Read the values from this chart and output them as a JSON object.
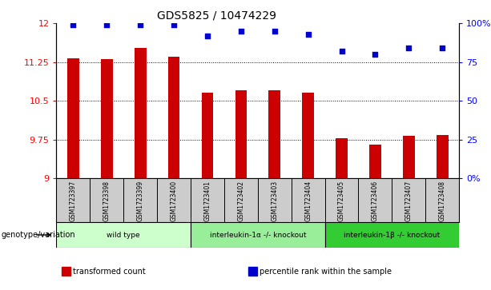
{
  "title": "GDS5825 / 10474229",
  "samples": [
    "GSM1723397",
    "GSM1723398",
    "GSM1723399",
    "GSM1723400",
    "GSM1723401",
    "GSM1723402",
    "GSM1723403",
    "GSM1723404",
    "GSM1723405",
    "GSM1723406",
    "GSM1723407",
    "GSM1723408"
  ],
  "bar_values": [
    11.32,
    11.31,
    11.52,
    11.35,
    10.65,
    10.7,
    10.7,
    10.65,
    9.77,
    9.66,
    9.83,
    9.84
  ],
  "percentile_values": [
    99,
    99,
    99,
    99,
    92,
    95,
    95,
    93,
    82,
    80,
    84,
    84
  ],
  "bar_color": "#cc0000",
  "dot_color": "#0000cc",
  "ymin": 9.0,
  "ymax": 12.0,
  "yticks_left": [
    9,
    9.75,
    10.5,
    11.25,
    12
  ],
  "ytick_labels_left": [
    "9",
    "9.75",
    "10.5",
    "11.25",
    "12"
  ],
  "yticks_right_vals": [
    0,
    25,
    50,
    75,
    100
  ],
  "ytick_labels_right": [
    "0%",
    "25",
    "50",
    "75",
    "100%"
  ],
  "grid_lines": [
    9.75,
    10.5,
    11.25
  ],
  "groups": [
    {
      "label": "wild type",
      "start": 0,
      "end": 3,
      "color": "#ccffcc"
    },
    {
      "label": "interleukin-1α -/- knockout",
      "start": 4,
      "end": 7,
      "color": "#99ee99"
    },
    {
      "label": "interleukin-1β -/- knockout",
      "start": 8,
      "end": 11,
      "color": "#33cc33"
    }
  ],
  "genotype_label": "genotype/variation",
  "legend_items": [
    {
      "color": "#cc0000",
      "label": "transformed count"
    },
    {
      "color": "#0000cc",
      "label": "percentile rank within the sample"
    }
  ],
  "tick_area_bg": "#cccccc",
  "bar_width": 0.35
}
